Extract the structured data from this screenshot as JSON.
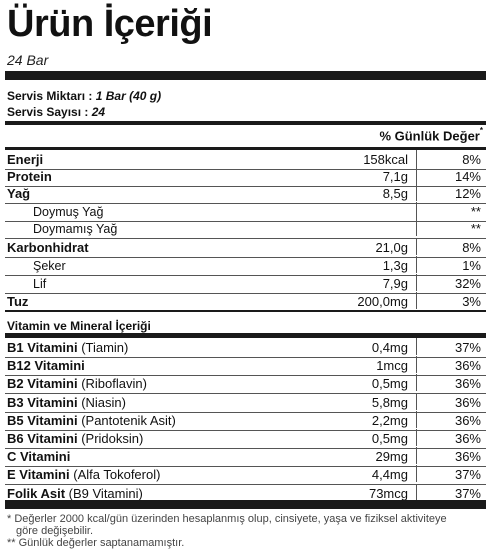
{
  "title": "Ürün İçeriği",
  "subtitle": "24 Bar",
  "serving": {
    "size_label": "Servis Miktarı :",
    "size_value": "1 Bar (40 g)",
    "count_label": "Servis Sayısı :",
    "count_value": "24"
  },
  "header": {
    "daily_value_label": "% Günlük Değer",
    "mark": "*"
  },
  "nutrients": [
    {
      "name": "Enerji",
      "amount": "158kcal",
      "pct": "8%"
    },
    {
      "name": "Protein",
      "amount": "7,1g",
      "pct": "14%"
    },
    {
      "name": "Yağ",
      "amount": "8,5g",
      "pct": "12%"
    },
    {
      "name": "Doymuş Yağ",
      "amount": "",
      "pct": "**"
    },
    {
      "name": "Doymamış Yağ",
      "amount": "",
      "pct": "**"
    },
    {
      "name": "Karbonhidrat",
      "amount": "21,0g",
      "pct": "8%"
    },
    {
      "name": "Şeker",
      "amount": "1,3g",
      "pct": "1%"
    },
    {
      "name": "Lif",
      "amount": "7,9g",
      "pct": "32%"
    },
    {
      "name": "Tuz",
      "amount": "200,0mg",
      "pct": "3%"
    }
  ],
  "vitamin_section_title": "Vitamin ve Mineral İçeriği",
  "vitamins": [
    {
      "name": "B1 Vitamini",
      "detail": "(Tiamin)",
      "amount": "0,4mg",
      "pct": "37%"
    },
    {
      "name": "B12 Vitamini",
      "detail": "",
      "amount": "1mcg",
      "pct": "36%"
    },
    {
      "name": "B2 Vitamini",
      "detail": "(Riboflavin)",
      "amount": "0,5mg",
      "pct": "36%"
    },
    {
      "name": "B3 Vitamini",
      "detail": "(Niasin)",
      "amount": "5,8mg",
      "pct": "36%"
    },
    {
      "name": "B5 Vitamini",
      "detail": "(Pantotenik Asit)",
      "amount": "2,2mg",
      "pct": "36%"
    },
    {
      "name": "B6 Vitamini",
      "detail": "(Pridoksin)",
      "amount": "0,5mg",
      "pct": "36%"
    },
    {
      "name": "C Vitamini",
      "detail": "",
      "amount": "29mg",
      "pct": "36%"
    },
    {
      "name": "E Vitamini",
      "detail": "(Alfa Tokoferol)",
      "amount": "4,4mg",
      "pct": "37%"
    },
    {
      "name": "Folik Asit",
      "detail": "(B9 Vitamini)",
      "amount": "73mcg",
      "pct": "37%"
    }
  ],
  "footnotes": {
    "line1": "* Değerler 2000 kcal/gün üzerinden hesaplanmış olup, cinsiyete, yaşa ve fiziksel aktiviteye",
    "line2": "göre değişebilir.",
    "line3": "** Günlük değerler saptanamamıştır."
  }
}
